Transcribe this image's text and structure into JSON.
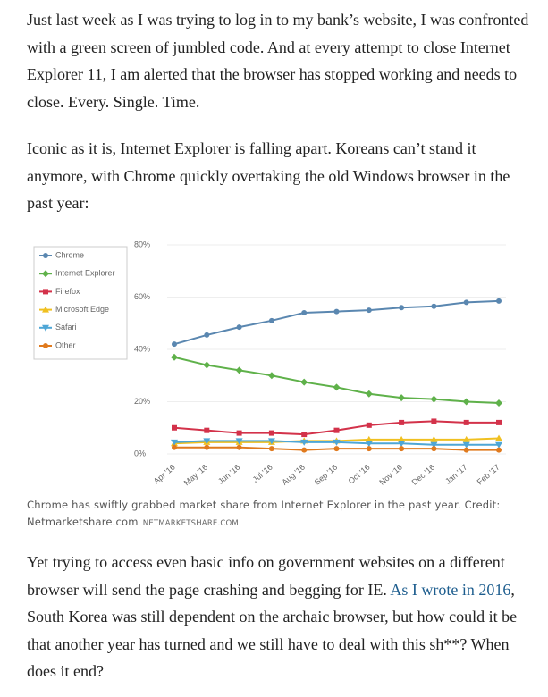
{
  "article": {
    "paragraphs": [
      "Just last week as I was trying to log in to my bank’s website, I was confronted with a green screen of jumbled code. And at every attempt to close Internet Explorer 11, I am alerted that the browser has stopped working and needs to close. Every. Single. Time.",
      "Iconic as it is, Internet Explorer is falling apart. Koreans can’t stand it anymore, with Chrome quickly overtaking the old Windows browser in the past year:"
    ],
    "closing": {
      "before": "Yet trying to access even basic info on government websites on a different browser will send the page crashing and begging for IE. ",
      "link": "As I wrote in 2016",
      "after": ", South Korea was still dependent on the archaic browser, but how could it be that another year has turned and we still have to deal with this sh**? When does it end?"
    },
    "caption": "Chrome has swiftly grabbed market share from Internet Explorer in the past year. Credit: Netmarketshare.com",
    "credit": "NETMARKETSHARE.COM"
  },
  "chart_data": {
    "type": "line",
    "categories": [
      "Apr '16",
      "May '16",
      "Jun '16",
      "Jul '16",
      "Aug '16",
      "Sep '16",
      "Oct '16",
      "Nov '16",
      "Dec '16",
      "Jan '17",
      "Feb '17"
    ],
    "series": [
      {
        "name": "Chrome",
        "color": "#5a87b0",
        "values": [
          42,
          45.5,
          48.5,
          51,
          54,
          54.5,
          55,
          56,
          56.5,
          58,
          58.5
        ]
      },
      {
        "name": "Internet Explorer",
        "color": "#5fb14a",
        "values": [
          37,
          34,
          32,
          30,
          27.5,
          25.5,
          23,
          21.5,
          21,
          20,
          19.5
        ]
      },
      {
        "name": "Firefox",
        "color": "#d3324a",
        "values": [
          10,
          9,
          8,
          8,
          7.5,
          9,
          11,
          12,
          12.5,
          12,
          12
        ]
      },
      {
        "name": "Microsoft Edge",
        "color": "#f0c020",
        "values": [
          4,
          4.5,
          4.5,
          4.5,
          5,
          5,
          5.5,
          5.5,
          5.5,
          5.5,
          6
        ]
      },
      {
        "name": "Safari",
        "color": "#4ea6d6",
        "values": [
          4.5,
          5,
          5,
          5,
          4.5,
          4.5,
          4,
          4,
          3.5,
          3.5,
          3.5
        ]
      },
      {
        "name": "Other",
        "color": "#e07a1e",
        "values": [
          2.5,
          2.5,
          2.5,
          2,
          1.5,
          2,
          2,
          2,
          2,
          1.5,
          1.5
        ]
      }
    ],
    "ylim": [
      0,
      80
    ],
    "yticks": [
      {
        "value": 0,
        "label": "0%"
      },
      {
        "value": 20,
        "label": "20%"
      },
      {
        "value": 40,
        "label": "40%"
      },
      {
        "value": 60,
        "label": "60%"
      },
      {
        "value": 80,
        "label": "80%"
      }
    ],
    "grid": true,
    "legend": "top-left"
  }
}
